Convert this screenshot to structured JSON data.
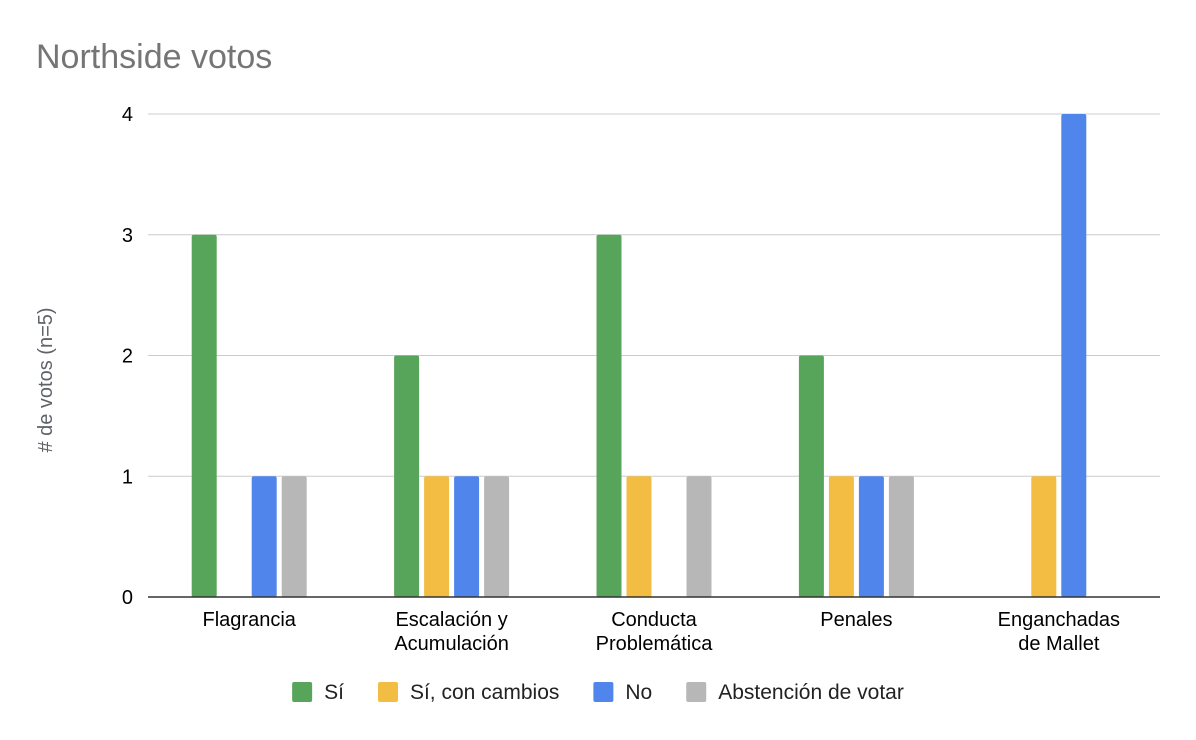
{
  "chart_data": {
    "type": "bar",
    "title": "Northside votos",
    "xlabel": "",
    "ylabel": "# de votos (n=5)",
    "ylim": [
      0,
      4
    ],
    "yticks": [
      0,
      1,
      2,
      3,
      4
    ],
    "grid": true,
    "legend_position": "bottom",
    "categories": [
      [
        "Flagrancia"
      ],
      [
        "Escalación y",
        "Acumulación"
      ],
      [
        "Conducta",
        "Problemática"
      ],
      [
        "Penales"
      ],
      [
        "Enganchadas",
        "de Mallet"
      ]
    ],
    "series": [
      {
        "name": "Sí",
        "color": "#57a55a",
        "values": [
          3,
          2,
          3,
          2,
          0
        ]
      },
      {
        "name": "Sí, con cambios",
        "color": "#f2bd42",
        "values": [
          0,
          1,
          1,
          1,
          1
        ]
      },
      {
        "name": "No",
        "color": "#5086ec",
        "values": [
          1,
          1,
          0,
          1,
          4
        ]
      },
      {
        "name": "Abstención de votar",
        "color": "#b7b7b7",
        "values": [
          1,
          1,
          1,
          1,
          0
        ]
      }
    ]
  }
}
